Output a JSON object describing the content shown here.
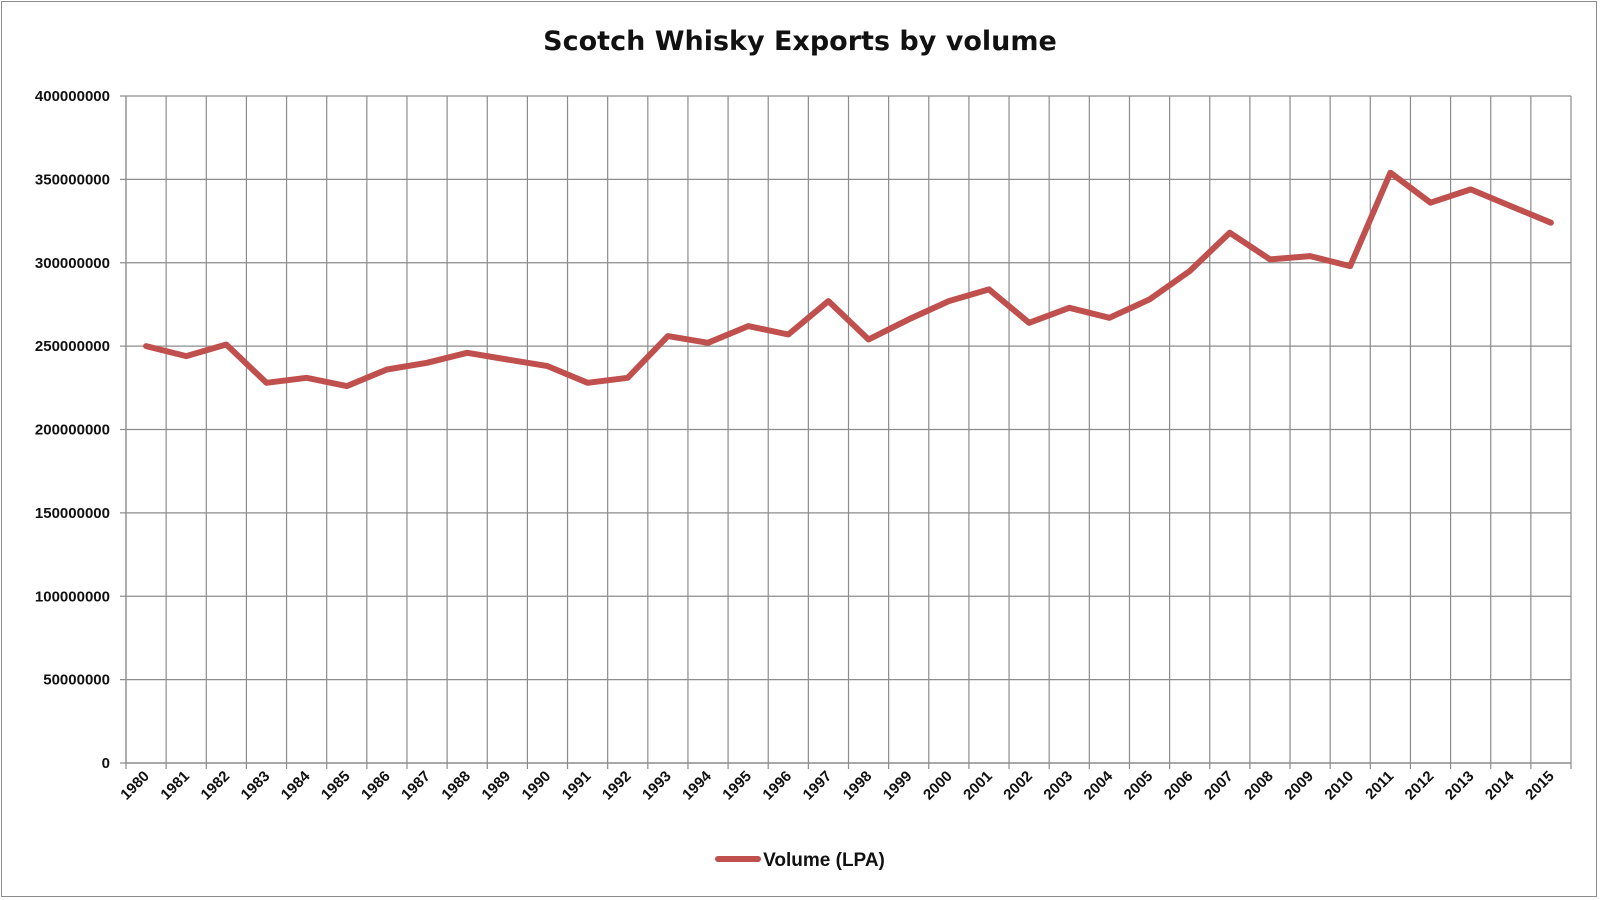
{
  "chart_data": {
    "type": "line",
    "title": "Scotch Whisky Exports by volume",
    "xlabel": "",
    "ylabel": "",
    "ylim": [
      0,
      400000000
    ],
    "yticks": [
      0,
      50000000,
      100000000,
      150000000,
      200000000,
      250000000,
      300000000,
      350000000,
      400000000
    ],
    "ytick_labels": [
      "0",
      "50000000",
      "100000000",
      "150000000",
      "200000000",
      "250000000",
      "300000000",
      "350000000",
      "400000000"
    ],
    "categories": [
      "1980",
      "1981",
      "1982",
      "1983",
      "1984",
      "1985",
      "1986",
      "1987",
      "1988",
      "1989",
      "1990",
      "1991",
      "1992",
      "1993",
      "1994",
      "1995",
      "1996",
      "1997",
      "1998",
      "1999",
      "2000",
      "2001",
      "2002",
      "2003",
      "2004",
      "2005",
      "2006",
      "2007",
      "2008",
      "2009",
      "2010",
      "2011",
      "2012",
      "2013",
      "2014",
      "2015"
    ],
    "grid": true,
    "legend_position": "bottom-center",
    "series": [
      {
        "name": "Volume (LPA)",
        "color": "#c0504d",
        "values": [
          250000000,
          244000000,
          251000000,
          228000000,
          231000000,
          226000000,
          236000000,
          240000000,
          246000000,
          242000000,
          238000000,
          228000000,
          231000000,
          256000000,
          252000000,
          262000000,
          257000000,
          277000000,
          254000000,
          266000000,
          277000000,
          284000000,
          264000000,
          273000000,
          267000000,
          278000000,
          295000000,
          318000000,
          302000000,
          304000000,
          298000000,
          354000000,
          336000000,
          344000000,
          334000000,
          324000000
        ]
      }
    ]
  }
}
